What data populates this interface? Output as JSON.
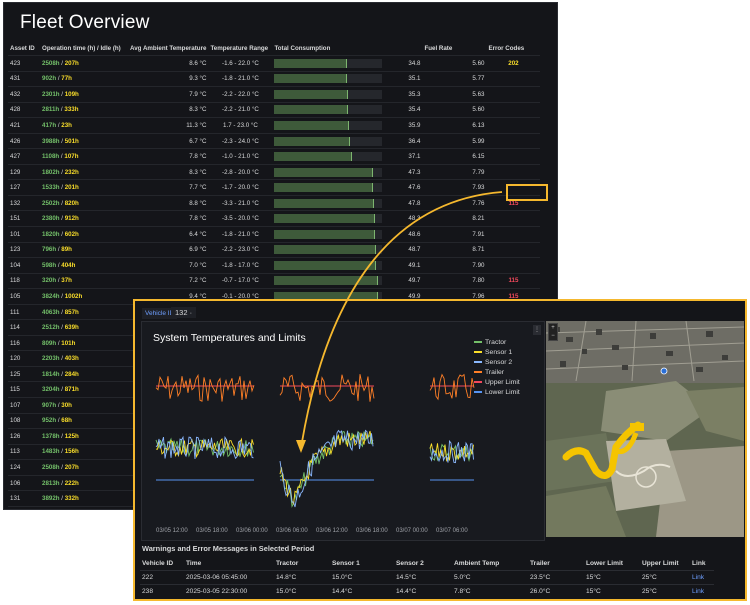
{
  "fleet": {
    "title": "Fleet Overview",
    "columns": [
      "Asset ID",
      "Operation time (h) / Idle (h)",
      "Avg Ambient Temperature",
      "Temperature Range",
      "Total Consumption",
      "",
      "Fuel Rate",
      "Error Codes"
    ],
    "rows": [
      {
        "id": "423",
        "op": "2508h",
        "idle": "207h",
        "amb": "8.6 °C",
        "range": "-1.6 - 22.0 °C",
        "cons": 34.8,
        "fuel": "5.60",
        "err": "202",
        "err_color": "yellow"
      },
      {
        "id": "431",
        "op": "902h",
        "idle": "77h",
        "amb": "9.3 °C",
        "range": "-1.8 - 21.0 °C",
        "cons": 35.1,
        "fuel": "5.77",
        "err": "",
        "err_color": ""
      },
      {
        "id": "432",
        "op": "2301h",
        "idle": "109h",
        "amb": "7.9 °C",
        "range": "-2.2 - 22.0 °C",
        "cons": 35.3,
        "fuel": "5.63",
        "err": "",
        "err_color": ""
      },
      {
        "id": "428",
        "op": "2811h",
        "idle": "333h",
        "amb": "8.3 °C",
        "range": "-2.2 - 21.0 °C",
        "cons": 35.4,
        "fuel": "5.60",
        "err": "",
        "err_color": ""
      },
      {
        "id": "421",
        "op": "417h",
        "idle": "23h",
        "amb": "11.3 °C",
        "range": "1.7 - 23.0 °C",
        "cons": 35.9,
        "fuel": "6.13",
        "err": "",
        "err_color": ""
      },
      {
        "id": "426",
        "op": "3988h",
        "idle": "501h",
        "amb": "6.7 °C",
        "range": "-2.3 - 24.0 °C",
        "cons": 36.4,
        "fuel": "5.99",
        "err": "",
        "err_color": ""
      },
      {
        "id": "427",
        "op": "1108h",
        "idle": "107h",
        "amb": "7.8 °C",
        "range": "-1.0 - 21.0 °C",
        "cons": 37.1,
        "fuel": "6.15",
        "err": "",
        "err_color": ""
      },
      {
        "id": "129",
        "op": "1802h",
        "idle": "232h",
        "amb": "8.3 °C",
        "range": "-2.8 - 20.0 °C",
        "cons": 47.3,
        "fuel": "7.79",
        "err": "",
        "err_color": ""
      },
      {
        "id": "127",
        "op": "1533h",
        "idle": "201h",
        "amb": "7.7 °C",
        "range": "-1.7 - 20.0 °C",
        "cons": 47.6,
        "fuel": "7.93",
        "err": "",
        "err_color": ""
      },
      {
        "id": "132",
        "op": "2502h",
        "idle": "820h",
        "amb": "8.8 °C",
        "range": "-3.3 - 21.0 °C",
        "cons": 47.8,
        "fuel": "7.76",
        "err": "115",
        "err_color": "red"
      },
      {
        "id": "151",
        "op": "2380h",
        "idle": "912h",
        "amb": "7.8 °C",
        "range": "-3.5 - 20.0 °C",
        "cons": 48.3,
        "fuel": "8.21",
        "err": "",
        "err_color": ""
      },
      {
        "id": "101",
        "op": "1820h",
        "idle": "602h",
        "amb": "6.4 °C",
        "range": "-1.8 - 21.0 °C",
        "cons": 48.6,
        "fuel": "7.91",
        "err": "",
        "err_color": ""
      },
      {
        "id": "123",
        "op": "796h",
        "idle": "89h",
        "amb": "6.9 °C",
        "range": "-2.2 - 23.0 °C",
        "cons": 48.7,
        "fuel": "8.71",
        "err": "",
        "err_color": ""
      },
      {
        "id": "104",
        "op": "598h",
        "idle": "404h",
        "amb": "7.0 °C",
        "range": "-1.8 - 17.0 °C",
        "cons": 49.1,
        "fuel": "7.90",
        "err": "",
        "err_color": ""
      },
      {
        "id": "118",
        "op": "320h",
        "idle": "37h",
        "amb": "7.2 °C",
        "range": "-0.7 - 17.0 °C",
        "cons": 49.7,
        "fuel": "7.80",
        "err": "115",
        "err_color": "red"
      },
      {
        "id": "105",
        "op": "3824h",
        "idle": "1002h",
        "amb": "9.4 °C",
        "range": "-0.1 - 20.0 °C",
        "cons": 49.9,
        "fuel": "7.96",
        "err": "115",
        "err_color": "red"
      },
      {
        "id": "111",
        "op": "4063h",
        "idle": "857h",
        "amb": "6.6 °C",
        "range": "-2.3 - 18.0 °C",
        "cons": 49.9,
        "fuel": "8.19",
        "err": "122",
        "err_color": "yellow"
      },
      {
        "id": "114",
        "op": "2512h",
        "idle": "639h"
      },
      {
        "id": "116",
        "op": "809h",
        "idle": "101h"
      },
      {
        "id": "120",
        "op": "2203h",
        "idle": "403h"
      },
      {
        "id": "125",
        "op": "1814h",
        "idle": "284h"
      },
      {
        "id": "115",
        "op": "3204h",
        "idle": "871h"
      },
      {
        "id": "107",
        "op": "907h",
        "idle": "30h"
      },
      {
        "id": "108",
        "op": "952h",
        "idle": "68h"
      },
      {
        "id": "126",
        "op": "1378h",
        "idle": "125h"
      },
      {
        "id": "113",
        "op": "1483h",
        "idle": "156h"
      },
      {
        "id": "124",
        "op": "2508h",
        "idle": "207h"
      },
      {
        "id": "106",
        "op": "2813h",
        "idle": "222h"
      },
      {
        "id": "131",
        "op": "3892h",
        "idle": "332h"
      },
      {
        "id": "109",
        "op": "3202h",
        "idle": "309h"
      },
      {
        "id": "117",
        "op": "808h",
        "idle": "204h"
      }
    ]
  },
  "detail": {
    "vehicle_label": "Vehicle ID",
    "vehicle_value": "132 ·",
    "chart_title": "System Temperatures and Limits",
    "warnings_title": "Warnings and Error Messages in Selected Period",
    "warn_columns": [
      "Vehicle ID",
      "Time",
      "Tractor",
      "Sensor 1",
      "Sensor 2",
      "Ambient Temp",
      "Trailer",
      "Lower Limit",
      "Upper Limit",
      "Link"
    ],
    "warn_rows": [
      [
        "222",
        "2025-03-06 05:45:00",
        "14.8°C",
        "15.0°C",
        "14.5°C",
        "5.0°C",
        "23.5°C",
        "15°C",
        "25°C",
        "Link"
      ],
      [
        "238",
        "2025-03-05 22:30:00",
        "15.0°C",
        "14.4°C",
        "14.4°C",
        "7.8°C",
        "26.0°C",
        "15°C",
        "25°C",
        "Link"
      ]
    ]
  },
  "chart_data": {
    "type": "line",
    "title": "System Temperatures and Limits",
    "xlabel": "",
    "ylabel": "",
    "x_ticks": [
      "03/05 12:00",
      "03/05 18:00",
      "03/06 00:00",
      "03/06 06:00",
      "03/06 12:00",
      "03/06 18:00",
      "03/07 00:00",
      "03/07 06:00"
    ],
    "legend_position": "top-right",
    "grid": false,
    "series": [
      {
        "name": "Tractor",
        "color": "#73bf69"
      },
      {
        "name": "Sensor 1",
        "color": "#fade2a"
      },
      {
        "name": "Sensor 2",
        "color": "#8ab8ff"
      },
      {
        "name": "Trailer",
        "color": "#ff7f27"
      },
      {
        "name": "Upper Limit",
        "color": "#f2495c"
      },
      {
        "name": "Lower Limit",
        "color": "#5794f2"
      }
    ]
  },
  "colors": {
    "accent": "#f5b82e",
    "bar_fill": "#3e5a3a",
    "bar_edge": "#7db56f",
    "error_red": "#f2495c",
    "error_yellow": "#fade2a"
  },
  "icons": {
    "vehicle_dropdown": "chevron-down-icon",
    "panel_menu": "ellipsis-icon",
    "map_zoom": "zoom-control-icon"
  }
}
